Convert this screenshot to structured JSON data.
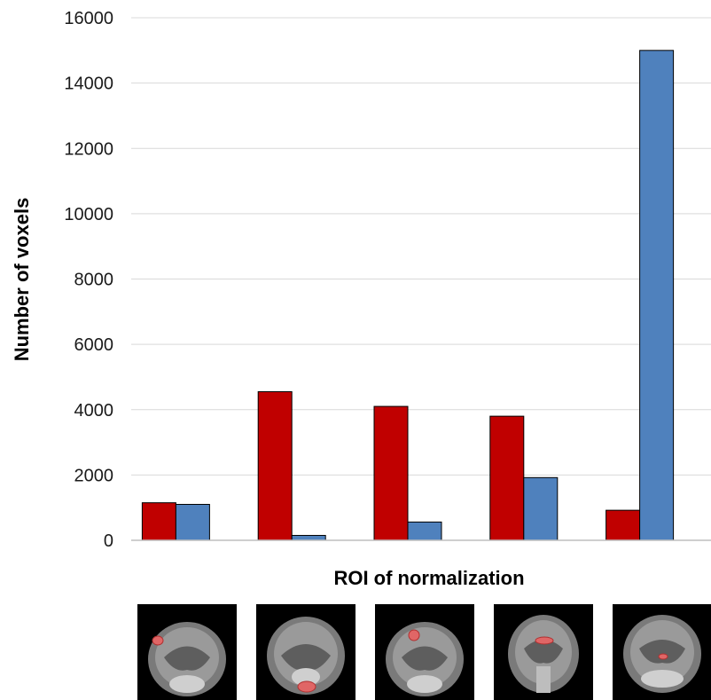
{
  "chart_data": {
    "type": "bar",
    "title": "",
    "xlabel": "ROI of normalization",
    "ylabel": "Number of voxels",
    "ylim": [
      0,
      16000
    ],
    "yticks": [
      "0",
      "2000",
      "4000",
      "6000",
      "8000",
      "10000",
      "12000",
      "14000",
      "16000"
    ],
    "categories": [
      "",
      "",
      "",
      "",
      ""
    ],
    "series": [
      {
        "color": "#c00000",
        "values": [
          1150,
          4550,
          4100,
          3800,
          920
        ]
      },
      {
        "color": "#4f81bd",
        "values": [
          1100,
          150,
          560,
          1920,
          15000
        ]
      }
    ],
    "grid": true,
    "legend": "none"
  },
  "thumbnails": [
    {
      "icon": "brain-slice-roi-left-cortex"
    },
    {
      "icon": "brain-slice-roi-ventral"
    },
    {
      "icon": "brain-slice-roi-dorsal-left"
    },
    {
      "icon": "brain-slice-roi-dorsal-center"
    },
    {
      "icon": "brain-slice-roi-center"
    }
  ]
}
